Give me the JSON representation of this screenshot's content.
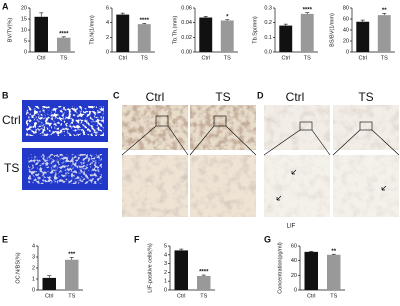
{
  "figure": {
    "labels": [
      "A",
      "B",
      "C",
      "D",
      "E",
      "F",
      "G"
    ]
  },
  "images": {
    "B": {
      "rows": [
        "Ctrl",
        "TS"
      ]
    },
    "C": {
      "columns": [
        "Ctrl",
        "TS"
      ]
    },
    "D": {
      "columns": [
        "Ctrl",
        "TS"
      ],
      "caption": "LIF"
    }
  },
  "chart_data": [
    {
      "type": "bar",
      "ylabel": "BV/TV(%)",
      "categories": [
        "Ctrl",
        "TS"
      ],
      "values": [
        16,
        6.5
      ],
      "errors": [
        1.8,
        0.4
      ],
      "colors": [
        "#111111",
        "#999999"
      ],
      "annotation": "****",
      "ylim": [
        0,
        20
      ],
      "yticks": [
        0,
        5,
        10,
        15,
        20
      ]
    },
    {
      "type": "bar",
      "ylabel": "Tb.N(1/mm)",
      "categories": [
        "Ctrl",
        "TS"
      ],
      "values": [
        5.1,
        3.8
      ],
      "errors": [
        0.2,
        0.1
      ],
      "colors": [
        "#111111",
        "#999999"
      ],
      "annotation": "****",
      "ylim": [
        0,
        6
      ],
      "yticks": [
        0,
        2,
        4,
        6
      ]
    },
    {
      "type": "bar",
      "ylabel": "Tb.Th.(mm)",
      "categories": [
        "Ctrl",
        "TS"
      ],
      "values": [
        0.047,
        0.043
      ],
      "errors": [
        0.0015,
        0.001
      ],
      "colors": [
        "#111111",
        "#999999"
      ],
      "annotation": "*",
      "ylim": [
        0,
        0.06
      ],
      "yticks": [
        {
          "value": 0,
          "label": "0.00"
        },
        0.02,
        0.04,
        0.06
      ]
    },
    {
      "type": "bar",
      "ylabel": "Tb.Sp(mm)",
      "categories": [
        "Ctrl",
        "TS"
      ],
      "values": [
        0.18,
        0.26
      ],
      "errors": [
        0.01,
        0.008
      ],
      "colors": [
        "#111111",
        "#999999"
      ],
      "annotation": "****",
      "ylim": [
        0,
        0.3
      ],
      "yticks": [
        {
          "value": 0,
          "label": "0.0"
        },
        0.1,
        0.2,
        0.3
      ]
    },
    {
      "type": "bar",
      "ylabel": "BS/BV(1/mm)",
      "categories": [
        "Ctrl",
        "TS"
      ],
      "values": [
        55,
        67
      ],
      "errors": [
        3,
        3
      ],
      "colors": [
        "#111111",
        "#999999"
      ],
      "annotation": "**",
      "ylim": [
        0,
        80
      ],
      "yticks": [
        0,
        20,
        40,
        60,
        80
      ]
    },
    {
      "type": "bar",
      "ylabel": "OC.N/BS(%)",
      "categories": [
        "Ctrl",
        "TS"
      ],
      "values": [
        1.1,
        2.75
      ],
      "errors": [
        0.2,
        0.2
      ],
      "colors": [
        "#111111",
        "#999999"
      ],
      "annotation": "***",
      "ylim": [
        0,
        4
      ],
      "yticks": [
        0,
        1,
        2,
        3,
        4
      ]
    },
    {
      "type": "bar",
      "ylabel": "LIF-positive cells(%)",
      "categories": [
        "Ctrl",
        "TS"
      ],
      "values": [
        4.5,
        1.6
      ],
      "errors": [
        0.15,
        0.1
      ],
      "colors": [
        "#111111",
        "#999999"
      ],
      "annotation": "****",
      "ylim": [
        0,
        5
      ],
      "yticks": [
        0,
        1,
        2,
        3,
        4,
        5
      ]
    },
    {
      "type": "bar",
      "ylabel": "Concentration(pg/ml)",
      "categories": [
        "Ctrl",
        "TS"
      ],
      "values": [
        52,
        48
      ],
      "errors": [
        0.8,
        0.8
      ],
      "colors": [
        "#111111",
        "#999999"
      ],
      "annotation": "**",
      "ylim": [
        0,
        60
      ],
      "yticks": [
        0,
        20,
        40,
        60
      ]
    }
  ]
}
